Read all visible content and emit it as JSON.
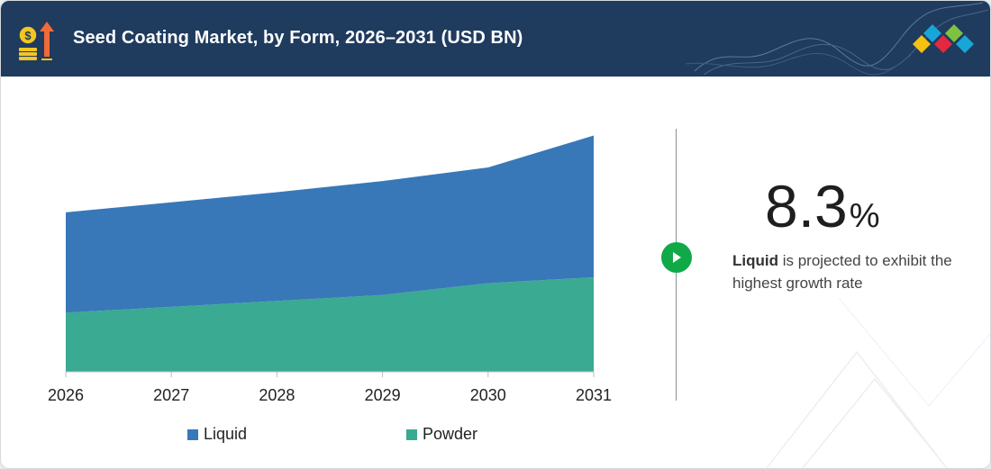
{
  "header": {
    "title": "Seed Coating Market, by Form, 2026–2031 (USD BN)",
    "icon": "money-growth-icon",
    "logo": "marketsandmarkets-diamond-logo"
  },
  "chart_data": {
    "type": "area",
    "stacked": true,
    "x": [
      "2026",
      "2027",
      "2028",
      "2029",
      "2030",
      "2031"
    ],
    "series": [
      {
        "name": "Powder",
        "color": "#3aaa92",
        "values": [
          1.0,
          1.1,
          1.2,
          1.3,
          1.5,
          1.6
        ]
      },
      {
        "name": "Liquid",
        "color": "#3878b8",
        "values": [
          1.7,
          1.77,
          1.84,
          1.93,
          1.96,
          2.4
        ]
      }
    ],
    "ylim": [
      0,
      4.1
    ],
    "grid": false,
    "legend_position": "bottom",
    "title": "",
    "xlabel": "",
    "ylabel": ""
  },
  "legend": [
    {
      "label": "Liquid",
      "color": "#3878b8"
    },
    {
      "label": "Powder",
      "color": "#3aaa92"
    }
  ],
  "highlight": {
    "value": "8.3",
    "unit": "%",
    "segment": "Liquid",
    "text": " is projected to exhibit the highest growth rate"
  }
}
